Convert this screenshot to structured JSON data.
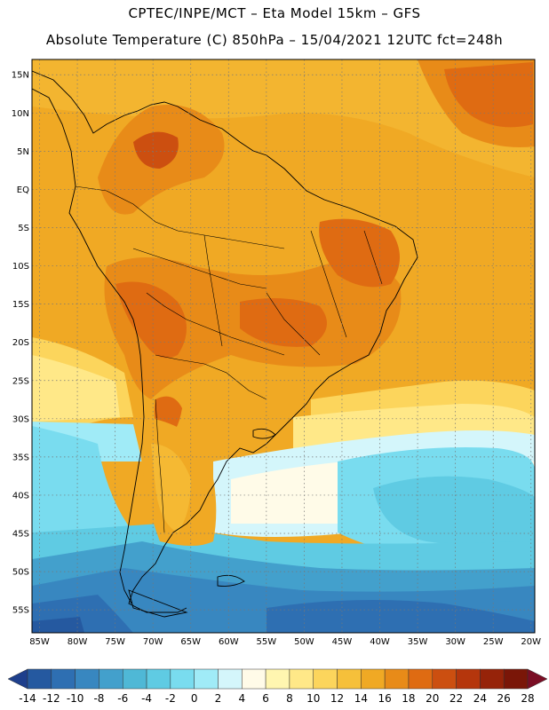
{
  "header": {
    "line1": "CPTEC/INPE/MCT –  Eta Model 15km – GFS",
    "line2": "Absolute Temperature (C) 850hPa – 15/04/2021 12UTC fct=248h"
  },
  "map": {
    "lat_labels": [
      "15N",
      "10N",
      "5N",
      "EQ",
      "5S",
      "10S",
      "15S",
      "20S",
      "25S",
      "30S",
      "35S",
      "40S",
      "45S",
      "50S",
      "55S"
    ],
    "lon_labels": [
      "85W",
      "80W",
      "75W",
      "70W",
      "65W",
      "60W",
      "55W",
      "50W",
      "45W",
      "40W",
      "35W",
      "30W",
      "25W",
      "20W"
    ],
    "lat_values": [
      15,
      10,
      5,
      0,
      -5,
      -10,
      -15,
      -20,
      -25,
      -30,
      -35,
      -40,
      -45,
      -50,
      -55
    ],
    "lon_values": [
      -85,
      -80,
      -75,
      -70,
      -65,
      -60,
      -55,
      -50,
      -45,
      -40,
      -35,
      -30,
      -25,
      -20
    ],
    "extent": {
      "lon_min": -86,
      "lon_max": -19.5,
      "lat_min": -58,
      "lat_max": 17
    },
    "grid": "dotted"
  },
  "colorbar": {
    "labels": [
      "-14",
      "-12",
      "-10",
      "-8",
      "-6",
      "-4",
      "-2",
      "0",
      "2",
      "4",
      "6",
      "8",
      "10",
      "12",
      "14",
      "16",
      "18",
      "20",
      "22",
      "24",
      "26",
      "28"
    ],
    "colors": [
      "#1e3f8c",
      "#2559a0",
      "#2e6fb2",
      "#3887c0",
      "#43a0cc",
      "#4fb8d6",
      "#5fcbe3",
      "#79dcef",
      "#a0ebf7",
      "#d4f6fb",
      "#fffbe8",
      "#fff6b0",
      "#ffe888",
      "#fcd55c",
      "#f6c03a",
      "#f0a924",
      "#e88b18",
      "#df6b12",
      "#cc4f10",
      "#b5360c",
      "#962309",
      "#7a1608",
      "#7a0d24"
    ]
  }
}
